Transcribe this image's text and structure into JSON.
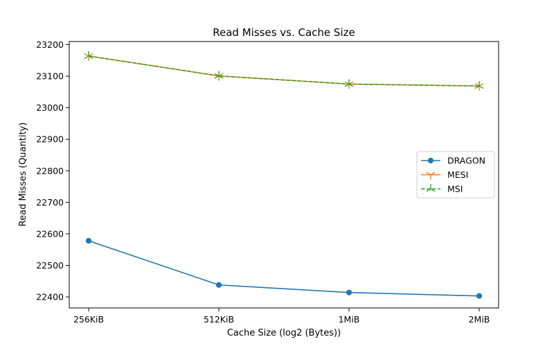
{
  "chart_data": {
    "type": "line",
    "title": "Read Misses vs. Cache Size",
    "xlabel": "Cache Size (log2 (Bytes))",
    "ylabel": "Read Misses (Quantity)",
    "categories": [
      "256KiB",
      "512KiB",
      "1MiB",
      "2MiB"
    ],
    "ylim": [
      22365,
      23210
    ],
    "yticks": [
      22400,
      22500,
      22600,
      22700,
      22800,
      22900,
      23000,
      23100,
      23200
    ],
    "grid": false,
    "legend_position": "center-right",
    "series": [
      {
        "name": "DRAGON",
        "values": [
          22578,
          22438,
          22414,
          22403
        ],
        "color": "#1f77b4",
        "marker": "circle",
        "dash": "solid"
      },
      {
        "name": "MESI",
        "values": [
          23164,
          23101,
          23075,
          23069
        ],
        "color": "#ff7f0e",
        "marker": "tri-down",
        "dash": "solid"
      },
      {
        "name": "MSI",
        "values": [
          23164,
          23101,
          23075,
          23069
        ],
        "color": "#2ca02c",
        "marker": "tri-up",
        "dash": "dashed"
      }
    ]
  }
}
